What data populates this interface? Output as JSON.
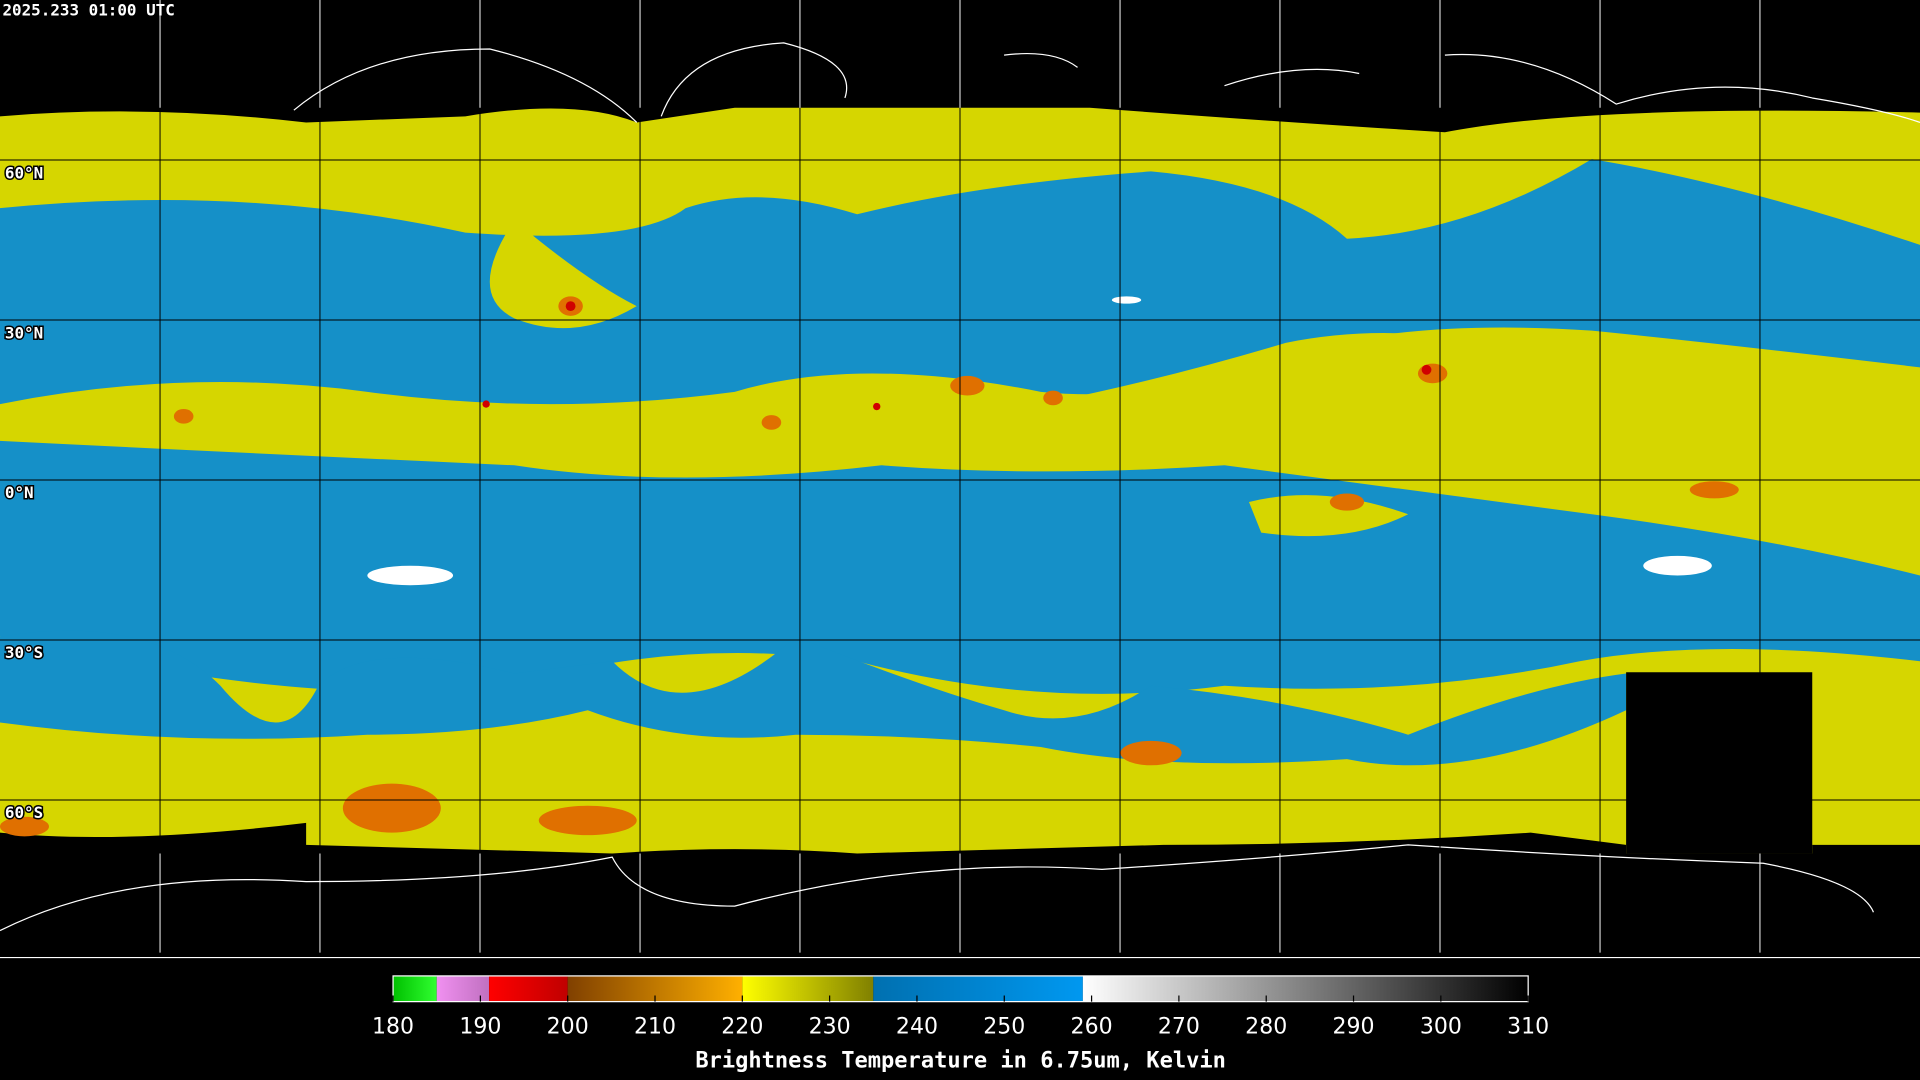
{
  "timestamp": "2025.233 01:00 UTC",
  "lat_labels": [
    "60°N",
    "30°N",
    "0°N",
    "30°S",
    "60°S"
  ],
  "colorbar": {
    "label": "Brightness Temperature in 6.75um, Kelvin",
    "lim": [
      180,
      310
    ],
    "ticks": [
      180,
      190,
      200,
      210,
      220,
      230,
      240,
      250,
      260,
      270,
      280,
      290,
      300,
      310
    ],
    "segments": [
      {
        "from": 180,
        "to": 185,
        "colors": [
          "#00c000",
          "#30ff30"
        ]
      },
      {
        "from": 185,
        "to": 191,
        "colors": [
          "#f090f0",
          "#c070c0"
        ]
      },
      {
        "from": 191,
        "to": 200,
        "colors": [
          "#ff0000",
          "#c00000"
        ]
      },
      {
        "from": 200,
        "to": 220,
        "colors": [
          "#804000",
          "#ffb000"
        ]
      },
      {
        "from": 220,
        "to": 235,
        "colors": [
          "#ffff00",
          "#808000"
        ]
      },
      {
        "from": 235,
        "to": 259,
        "colors": [
          "#0070b0",
          "#0098f0"
        ]
      },
      {
        "from": 259,
        "to": 310,
        "colors": [
          "#ffffff",
          "#000000"
        ]
      }
    ]
  }
}
